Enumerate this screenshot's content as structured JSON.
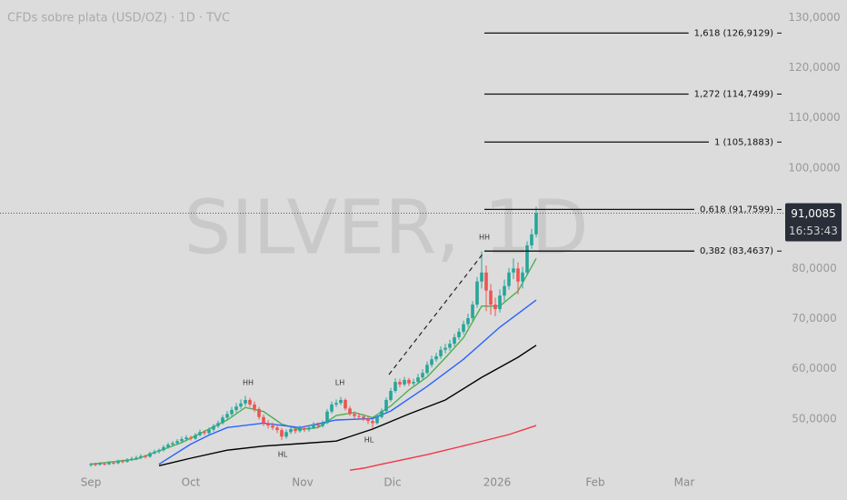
{
  "chart_data": {
    "type": "candlestick",
    "title": "CFDs sobre plata (USD/OZ) · 1D · TVC",
    "watermark": "SILVER, 1D",
    "up_color": "#26a69a",
    "down_color": "#ef5350",
    "xlim": [
      -20,
      152.4
    ],
    "xticks": [
      {
        "value": 0,
        "label": "Sep"
      },
      {
        "value": 22,
        "label": "Oct"
      },
      {
        "value": 46.6,
        "label": "Nov"
      },
      {
        "value": 66.4,
        "label": "Dic"
      },
      {
        "value": 89.4,
        "label": "2026"
      },
      {
        "value": 111,
        "label": "Feb"
      },
      {
        "value": 130.6,
        "label": "Mar"
      }
    ],
    "ylim": [
      39.3,
      133.5
    ],
    "yticks": [
      {
        "value": 50,
        "label": "50,0000"
      },
      {
        "value": 60,
        "label": "60,0000"
      },
      {
        "value": 70,
        "label": "70,0000"
      },
      {
        "value": 80,
        "label": "80,0000"
      },
      {
        "value": 100,
        "label": "100,0000"
      },
      {
        "value": 110,
        "label": "110,0000"
      },
      {
        "value": 120,
        "label": "120,0000"
      },
      {
        "value": 130,
        "label": "130,0000"
      }
    ],
    "candles": [
      [
        40.8,
        41.3,
        40.5,
        41.0
      ],
      [
        41.0,
        41.3,
        40.6,
        40.9
      ],
      [
        40.9,
        41.4,
        40.7,
        41.1
      ],
      [
        41.1,
        41.4,
        40.7,
        41.0
      ],
      [
        41.0,
        41.6,
        40.8,
        41.3
      ],
      [
        41.3,
        41.6,
        40.9,
        41.2
      ],
      [
        41.2,
        41.9,
        41.0,
        41.6
      ],
      [
        41.6,
        41.9,
        41.2,
        41.5
      ],
      [
        41.5,
        42.2,
        41.3,
        41.9
      ],
      [
        41.9,
        42.5,
        41.6,
        42.1
      ],
      [
        42.1,
        42.7,
        41.8,
        42.3
      ],
      [
        42.3,
        43.0,
        42.0,
        42.6
      ],
      [
        42.6,
        42.9,
        42.1,
        42.5
      ],
      [
        42.5,
        43.5,
        42.3,
        43.2
      ],
      [
        43.2,
        43.9,
        42.9,
        43.5
      ],
      [
        43.5,
        44.1,
        43.1,
        43.8
      ],
      [
        43.8,
        44.8,
        43.5,
        44.4
      ],
      [
        44.4,
        45.3,
        44.1,
        44.9
      ],
      [
        44.9,
        45.6,
        44.5,
        45.2
      ],
      [
        45.2,
        46.0,
        44.8,
        45.6
      ],
      [
        45.6,
        46.5,
        45.3,
        46.0
      ],
      [
        46.0,
        46.8,
        45.6,
        46.3
      ],
      [
        46.3,
        46.7,
        45.7,
        46.1
      ],
      [
        46.1,
        47.2,
        45.9,
        46.8
      ],
      [
        46.8,
        47.9,
        46.5,
        47.4
      ],
      [
        47.4,
        47.8,
        46.8,
        47.2
      ],
      [
        47.2,
        48.3,
        46.9,
        47.9
      ],
      [
        47.9,
        49.0,
        47.5,
        48.6
      ],
      [
        48.6,
        49.7,
        48.2,
        49.2
      ],
      [
        49.2,
        50.8,
        48.9,
        50.3
      ],
      [
        50.3,
        51.6,
        49.9,
        51.0
      ],
      [
        51.0,
        52.4,
        50.6,
        51.8
      ],
      [
        51.8,
        53.2,
        51.3,
        52.5
      ],
      [
        52.5,
        53.9,
        52.0,
        53.1
      ],
      [
        53.1,
        54.6,
        52.6,
        53.8
      ],
      [
        53.8,
        54.2,
        52.4,
        52.9
      ],
      [
        52.9,
        53.5,
        51.4,
        52.0
      ],
      [
        52.0,
        52.4,
        49.9,
        50.4
      ],
      [
        50.4,
        50.9,
        48.6,
        49.2
      ],
      [
        49.2,
        49.8,
        48.1,
        48.7
      ],
      [
        48.7,
        49.3,
        47.8,
        48.3
      ],
      [
        48.3,
        48.9,
        47.2,
        47.8
      ],
      [
        47.8,
        48.2,
        45.8,
        46.5
      ],
      [
        46.5,
        47.9,
        46.1,
        47.4
      ],
      [
        47.4,
        48.5,
        47.0,
        48.0
      ],
      [
        48.0,
        48.4,
        47.1,
        47.6
      ],
      [
        47.6,
        48.7,
        47.3,
        48.2
      ],
      [
        48.2,
        48.6,
        47.4,
        47.9
      ],
      [
        47.9,
        48.8,
        47.5,
        48.3
      ],
      [
        48.3,
        49.4,
        48.0,
        48.9
      ],
      [
        48.9,
        49.3,
        48.2,
        48.6
      ],
      [
        48.6,
        49.7,
        48.3,
        49.2
      ],
      [
        49.2,
        52.0,
        49.0,
        51.5
      ],
      [
        51.5,
        53.5,
        51.1,
        52.9
      ],
      [
        52.9,
        53.9,
        52.4,
        53.2
      ],
      [
        53.2,
        54.4,
        52.8,
        53.8
      ],
      [
        53.8,
        54.1,
        51.7,
        52.1
      ],
      [
        52.1,
        52.6,
        50.6,
        51.0
      ],
      [
        51.0,
        51.5,
        50.1,
        50.6
      ],
      [
        50.6,
        51.2,
        50.0,
        50.5
      ],
      [
        50.5,
        51.0,
        49.6,
        50.1
      ],
      [
        50.1,
        50.5,
        49.0,
        49.6
      ],
      [
        49.6,
        50.0,
        48.1,
        49.2
      ],
      [
        49.2,
        50.9,
        48.9,
        50.4
      ],
      [
        50.4,
        52.1,
        50.1,
        51.6
      ],
      [
        51.6,
        54.3,
        51.3,
        53.8
      ],
      [
        53.8,
        56.2,
        53.4,
        55.6
      ],
      [
        55.6,
        58.1,
        55.2,
        57.4
      ],
      [
        57.4,
        58.0,
        56.3,
        56.9
      ],
      [
        56.9,
        58.4,
        56.5,
        57.8
      ],
      [
        57.8,
        58.2,
        56.6,
        57.1
      ],
      [
        57.1,
        58.0,
        56.7,
        57.4
      ],
      [
        57.4,
        59.0,
        57.0,
        58.3
      ],
      [
        58.3,
        59.9,
        57.9,
        59.2
      ],
      [
        59.2,
        61.5,
        58.8,
        60.8
      ],
      [
        60.8,
        62.6,
        60.3,
        61.9
      ],
      [
        61.9,
        63.2,
        61.4,
        62.5
      ],
      [
        62.5,
        64.5,
        62.0,
        63.8
      ],
      [
        63.8,
        65.0,
        63.1,
        64.2
      ],
      [
        64.2,
        65.8,
        63.6,
        65.0
      ],
      [
        65.0,
        67.0,
        64.5,
        66.3
      ],
      [
        66.3,
        68.1,
        65.8,
        67.4
      ],
      [
        67.4,
        69.6,
        66.9,
        68.9
      ],
      [
        68.9,
        71.0,
        68.3,
        70.1
      ],
      [
        70.1,
        73.5,
        69.6,
        72.8
      ],
      [
        72.8,
        78.3,
        72.2,
        77.4
      ],
      [
        77.4,
        83.4,
        76.0,
        79.2
      ],
      [
        79.2,
        80.6,
        71.5,
        75.6
      ],
      [
        75.6,
        76.9,
        70.8,
        72.8
      ],
      [
        72.8,
        74.2,
        70.5,
        71.9
      ],
      [
        71.9,
        75.8,
        71.2,
        74.6
      ],
      [
        74.6,
        77.8,
        73.5,
        76.5
      ],
      [
        76.5,
        80.1,
        75.8,
        79.2
      ],
      [
        79.2,
        82.0,
        77.9,
        80.0
      ],
      [
        80.0,
        81.2,
        74.8,
        77.4
      ],
      [
        77.4,
        80.3,
        76.0,
        79.2
      ],
      [
        79.2,
        85.4,
        78.6,
        84.6
      ],
      [
        84.6,
        87.9,
        83.9,
        86.8
      ],
      [
        86.8,
        92.3,
        86.2,
        91.0
      ]
    ],
    "moving_averages": [
      {
        "color": "#4caf50",
        "x": [
          0,
          10,
          20,
          30,
          34,
          38,
          42,
          46,
          50,
          54,
          58,
          62,
          66,
          70,
          74,
          78,
          82,
          86,
          90,
          94,
          98
        ],
        "values": [
          41,
          42,
          45.3,
          49.8,
          52.3,
          51.5,
          49,
          47.9,
          48.3,
          50.7,
          51.3,
          50.3,
          52.6,
          55.8,
          58.4,
          62.2,
          66.2,
          72.5,
          72.5,
          75.5,
          82
        ]
      },
      {
        "color": "#2962ff",
        "x": [
          15,
          22,
          26,
          30,
          38,
          46,
          54,
          62,
          66,
          74,
          82,
          90,
          98
        ],
        "values": [
          41,
          45,
          46.8,
          48.3,
          49.2,
          48.3,
          49.8,
          50.1,
          51.6,
          56.5,
          61.9,
          68.3,
          73.7
        ]
      },
      {
        "color": "#000000",
        "x": [
          15,
          22,
          30,
          38,
          46,
          54,
          62,
          70,
          78,
          86,
          94,
          98
        ],
        "values": [
          40.7,
          42.2,
          43.8,
          44.6,
          45.1,
          45.6,
          48,
          51,
          53.8,
          58.3,
          62.3,
          64.7
        ]
      },
      {
        "color": "#f23645",
        "x": [
          57,
          60,
          64,
          74,
          84,
          92,
          98
        ],
        "values": [
          39.8,
          40.2,
          41,
          42.9,
          45.1,
          46.9,
          48.7
        ]
      }
    ],
    "fib_levels": [
      {
        "label": "1,618 (126,9129)",
        "value": 126.9129
      },
      {
        "label": "1,272 (114,7499)",
        "value": 114.7499
      },
      {
        "label": "1 (105,1883)",
        "value": 105.1883
      },
      {
        "label": "0,618 (91,7599)",
        "value": 91.7599
      },
      {
        "label": "0,382 (83,4637)",
        "value": 83.4637
      }
    ],
    "last_price": {
      "value": 91.0085,
      "label": "91,0085"
    },
    "countdown": "16:53:43",
    "annotations": [
      "HH",
      "HL",
      "LH",
      "HL",
      "HH"
    ]
  }
}
